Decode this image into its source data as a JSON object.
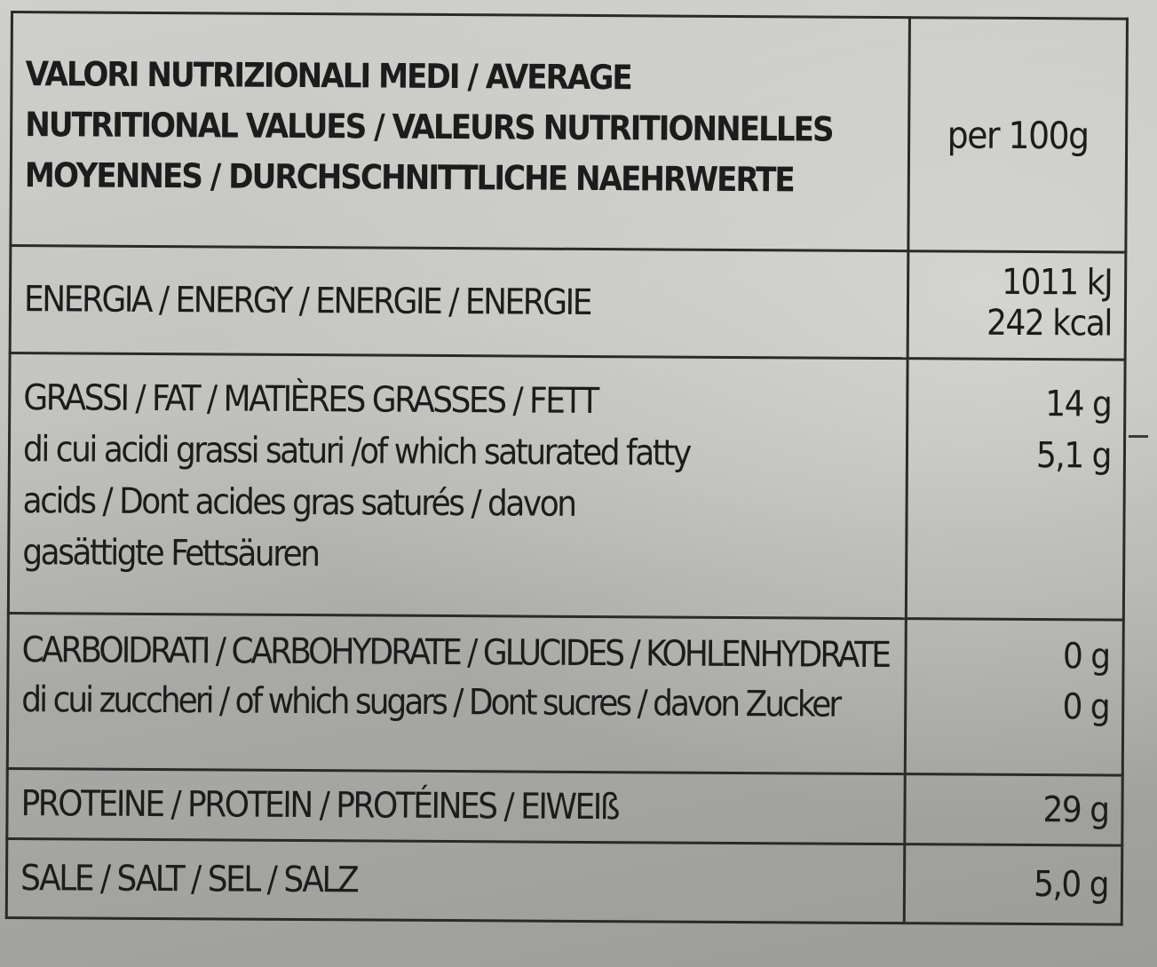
{
  "header": {
    "label_lines": [
      "VALORI NUTRIZIONALI MEDI / AVERAGE",
      "NUTRITIONAL VALUES / VALEURS NUTRITIONNELLES",
      "MOYENNES / DURCHSCHNITTLICHE NAEHRWERTE"
    ],
    "per": "per 100g"
  },
  "rows": [
    {
      "label_lines": [
        "ENERGIA / ENERGY / ENERGIE / ENERGIE"
      ],
      "values": [
        "1011 kJ",
        "242 kcal"
      ]
    },
    {
      "label_lines": [
        "GRASSI / FAT / MATIÈRES GRASSES / FETT",
        "di cui acidi grassi saturi /of which saturated fatty",
        "acids / Dont acides gras saturés / davon",
        "gasättigte Fettsäuren"
      ],
      "values": [
        "14 g",
        "5,1 g"
      ]
    },
    {
      "label_lines": [
        "CARBOIDRATI / CARBOHYDRATE / GLUCIDES / KOHLENHYDRATE",
        "di cui zuccheri / of which sugars / Dont sucres / davon Zucker"
      ],
      "values": [
        "0 g",
        "0 g"
      ]
    },
    {
      "label_lines": [
        "PROTEINE / PROTEIN / PROTÉINES / EIWEIß"
      ],
      "values": [
        "29 g"
      ]
    },
    {
      "label_lines": [
        "SALE / SALT / SEL / SALZ"
      ],
      "values": [
        "5,0 g"
      ]
    }
  ]
}
